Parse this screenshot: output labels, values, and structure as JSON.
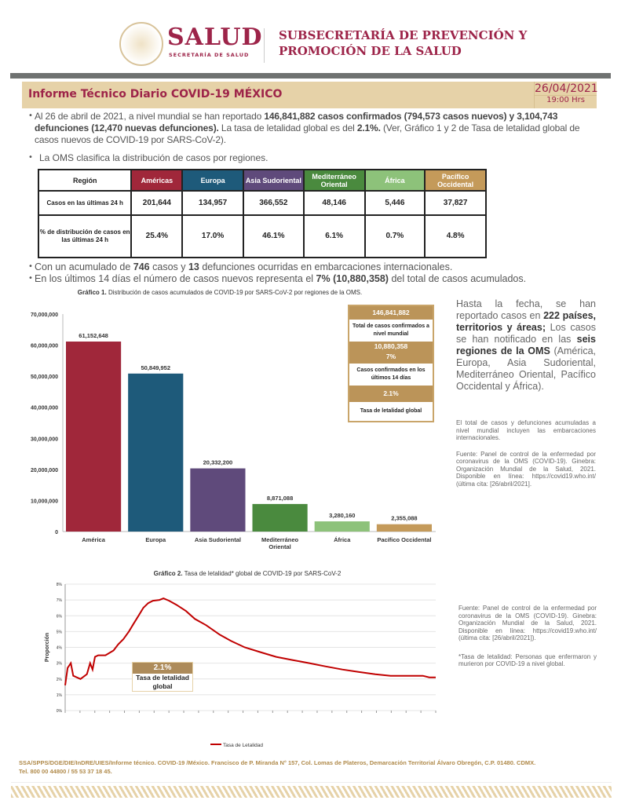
{
  "header": {
    "logo_text": "SALUD",
    "logo_subtext": "SECRETARÍA DE SALUD",
    "subsecretaria_line1": "SUBSECRETARÍA DE PREVENCIÓN Y",
    "subsecretaria_line2": "PROMOCIÓN DE LA SALUD"
  },
  "report": {
    "title": "Informe Técnico Diario COVID-19 MÉXICO",
    "date": "26/04/2021",
    "time": "19:00 Hrs"
  },
  "bullets": {
    "b1_a": "Al 26 de abril de 2021, a nivel mundial se han reportado ",
    "b1_bold": "146,841,882 casos confirmados (794,573 casos nuevos) y 3,104,743 defunciones (12,470 nuevas defunciones).",
    "b1_b": "  La tasa de letalidad global es del ",
    "b1_bold2": "2.1%.",
    "b1_c": " (Ver, Gráfico 1 y 2 de Tasa de letalidad global de casos nuevos de COVID-19 por SARS-CoV-2).",
    "b2": "La OMS clasifica la distribución de casos por regiones.",
    "b3_a": "Con un acumulado de ",
    "b3_n1": "746",
    "b3_b": " casos y ",
    "b3_n2": "13",
    "b3_c": " defunciones ocurridas en embarcaciones internacionales.",
    "b4_a": "En los últimos 14 días el número de casos nuevos representa el ",
    "b4_bold": "7% (10,880,358)",
    "b4_b": " del total de casos acumulados."
  },
  "table": {
    "headers": [
      "Región",
      "Américas",
      "Europa",
      "Asia Sudoriental",
      "Mediterráneo Oriental",
      "África",
      "Pacífico Occidental"
    ],
    "header_colors": [
      "#ffffff",
      "#a0273a",
      "#1e5a7a",
      "#5f4a7b",
      "#4a8a3e",
      "#8dc27a",
      "#c49a5a"
    ],
    "rows": [
      {
        "label": "Casos en las últimas 24 h",
        "values": [
          "201,644",
          "134,957",
          "366,552",
          "48,146",
          "5,446",
          "37,827"
        ]
      },
      {
        "label": "% de distribución de casos en las últimas 24 h",
        "values": [
          "25.4%",
          "17.0%",
          "46.1%",
          "6.1%",
          "0.7%",
          "4.8%"
        ]
      }
    ]
  },
  "chart_data": [
    {
      "type": "bar",
      "title": "Gráfico 1.",
      "subtitle": "Distribución de casos acumulados de COVID-19 por SARS-CoV-2 por regiones de la OMS.",
      "categories": [
        "América",
        "Europa",
        "Asia Sudoriental",
        "Mediterráneo Oriental",
        "África",
        "Pacífico Occidental"
      ],
      "values": [
        61152648,
        50849952,
        20332200,
        8871088,
        3280160,
        2355088
      ],
      "value_labels": [
        "61,152,648",
        "50,849,952",
        "20,332,200",
        "8,871,088",
        "3,280,160",
        "2,355,088"
      ],
      "colors": [
        "#a0273a",
        "#1e5a7a",
        "#5f4a7b",
        "#4a8a3e",
        "#8dc27a",
        "#c49a5a"
      ],
      "ylim": [
        0,
        70000000
      ],
      "yticks": [
        "0",
        "10,000,000",
        "20,000,000",
        "30,000,000",
        "40,000,000",
        "50,000,000",
        "60,000,000",
        "70,000,000"
      ],
      "grid": false
    },
    {
      "type": "line",
      "title": "Gráfico 2.",
      "subtitle": "Tasa de letalidad* global de COVID-19 por SARS-CoV-2",
      "ylabel": "Proporción",
      "ylim": [
        0,
        8
      ],
      "yticks": [
        "0%",
        "1%",
        "2%",
        "3%",
        "4%",
        "5%",
        "6%",
        "7%",
        "8%"
      ],
      "grid": true,
      "legend": "bottom",
      "color": "#c00000",
      "series": [
        {
          "name": "Tasa de Letalidad",
          "x": [
            "2020-01-22",
            "2020-01-25",
            "2020-01-29",
            "2020-02-01",
            "2020-02-10",
            "2020-02-18",
            "2020-02-22",
            "2020-02-25",
            "2020-02-28",
            "2020-03-03",
            "2020-03-12",
            "2020-03-22",
            "2020-03-28",
            "2020-04-03",
            "2020-04-10",
            "2020-04-16",
            "2020-04-22",
            "2020-04-28",
            "2020-05-04",
            "2020-05-10",
            "2020-05-18",
            "2020-05-23",
            "2020-05-30",
            "2020-06-08",
            "2020-06-20",
            "2020-07-01",
            "2020-07-15",
            "2020-08-01",
            "2020-08-15",
            "2020-09-01",
            "2020-09-20",
            "2020-10-10",
            "2020-10-30",
            "2020-11-20",
            "2020-12-10",
            "2020-12-31",
            "2021-01-20",
            "2021-02-10",
            "2021-03-01",
            "2021-03-20",
            "2021-04-10",
            "2021-04-18",
            "2021-04-26"
          ],
          "y": [
            1.6,
            2.7,
            3.0,
            2.2,
            2.0,
            2.3,
            3.0,
            2.6,
            3.4,
            3.5,
            3.5,
            3.8,
            4.2,
            4.5,
            5.0,
            5.5,
            6.0,
            6.5,
            6.8,
            6.95,
            7.0,
            7.1,
            6.95,
            6.7,
            6.3,
            5.8,
            5.4,
            4.8,
            4.4,
            4.0,
            3.7,
            3.4,
            3.2,
            3.0,
            2.8,
            2.6,
            2.45,
            2.3,
            2.2,
            2.2,
            2.2,
            2.1,
            2.1
          ]
        }
      ]
    }
  ],
  "infobox": {
    "total": "146,841,882",
    "total_label": "Total de casos confirmados a nivel mundial",
    "last14": "10,880,358",
    "last14_pct": "7%",
    "last14_label": "Casos confirmados en los últimos 14 días",
    "rate": "2.1%",
    "rate_label": "Tasa de letalidad global"
  },
  "box2": {
    "rate": "2.1%",
    "label": "Tasa de letalidad global"
  },
  "sidebar": {
    "p1_a": "Hasta la fecha, se han reportado casos en ",
    "p1_bold": "222 países, territorios y áreas;",
    "p1_b": " Los casos se han notificado en las ",
    "p1_bold2": "seis regiones de la OMS",
    "p1_c": " (América, Europa, Asia Sudoriental, Mediterráneo Oriental, Pacífico Occidental y África).",
    "note1": "El total de casos y defunciones acumuladas a nivel mundial incluyen las embarcaciones internacionales.",
    "source1": "Fuente: Panel de control de la enfermedad por coronavirus de la OMS (COVID-19). Ginebra: Organización Mundial de la Salud, 2021. Disponible en línea: https://covid19.who.int/ (última cita: [26/abril/2021].",
    "source2": "Fuente: Panel de control de la enfermedad por coronavirus de la OMS (COVID-19). Ginebra: Organización Mundial de la Salud, 2021. Disponible en línea: https://covid19.who.int/ (última cita: [26/abril/2021]).",
    "note2": "*Tasa de letalidad: Personas que enfermaron y murieron por COVID-19 a nivel global."
  },
  "footer": {
    "line1": "SSA/SPPS/DGE/DIE/InDRE/UIES/Informe técnico. COVID-19 /México. Francisco de P. Miranda N° 157, Col. Lomas de Plateros, Demarcación Territorial Álvaro Obregón, C.P. 01480. CDMX.",
    "line2": "Tel. 800 00 44800 / 55 53 37 18 45."
  }
}
